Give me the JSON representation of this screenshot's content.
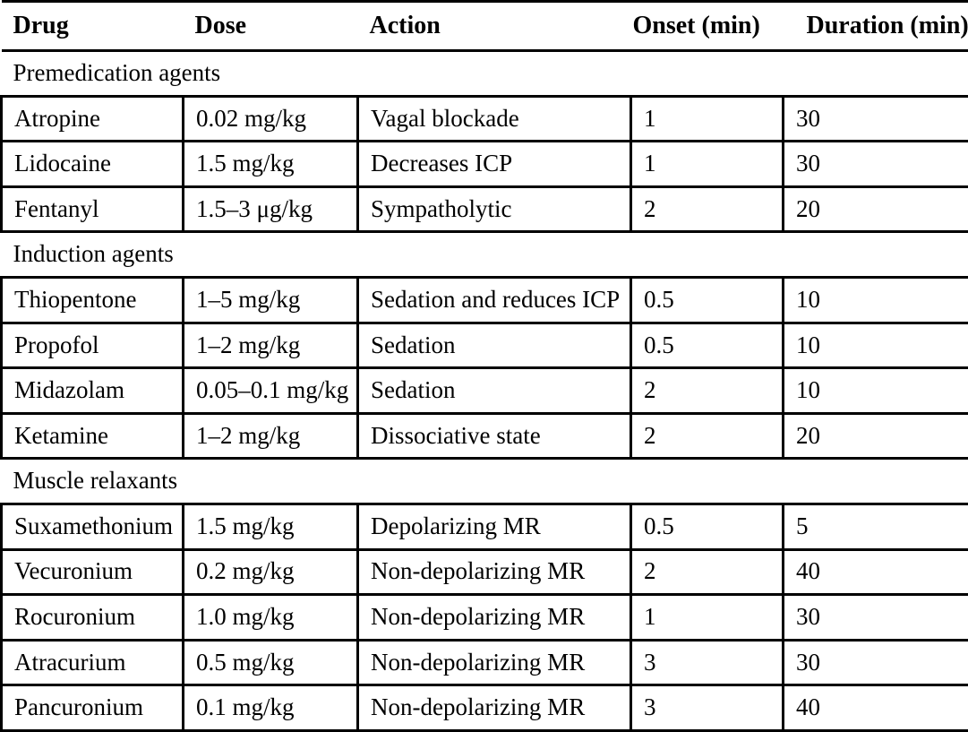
{
  "page": {
    "background_color": "#ffffff",
    "text_color": "#000000",
    "rule_color": "#000000"
  },
  "table": {
    "columns": [
      "Drug",
      "Dose",
      "Action",
      "Onset (min)",
      "Duration (min)"
    ],
    "sections": [
      {
        "title": "Premedication agents",
        "rows": [
          {
            "drug": "Atropine",
            "dose": "0.02 mg/kg",
            "action": "Vagal blockade",
            "onset": "1",
            "duration": "30"
          },
          {
            "drug": "Lidocaine",
            "dose": "1.5 mg/kg",
            "action": "Decreases ICP",
            "onset": "1",
            "duration": "30"
          },
          {
            "drug": "Fentanyl",
            "dose": "1.5–3 μg/kg",
            "action": "Sympatholytic",
            "onset": "2",
            "duration": "20"
          }
        ]
      },
      {
        "title": "Induction agents",
        "rows": [
          {
            "drug": "Thiopentone",
            "dose": "1–5 mg/kg",
            "action": "Sedation and reduces ICP",
            "onset": "0.5",
            "duration": "10"
          },
          {
            "drug": "Propofol",
            "dose": "1–2 mg/kg",
            "action": "Sedation",
            "onset": "0.5",
            "duration": "10"
          },
          {
            "drug": "Midazolam",
            "dose": "0.05–0.1 mg/kg",
            "action": "Sedation",
            "onset": "2",
            "duration": "10"
          },
          {
            "drug": "Ketamine",
            "dose": "1–2 mg/kg",
            "action": "Dissociative state",
            "onset": "2",
            "duration": "20"
          }
        ]
      },
      {
        "title": "Muscle relaxants",
        "rows": [
          {
            "drug": "Suxamethonium",
            "dose": "1.5 mg/kg",
            "action": "Depolarizing MR",
            "onset": "0.5",
            "duration": "5"
          },
          {
            "drug": "Vecuronium",
            "dose": "0.2 mg/kg",
            "action": "Non-depolarizing MR",
            "onset": "2",
            "duration": "40"
          },
          {
            "drug": "Rocuronium",
            "dose": "1.0 mg/kg",
            "action": "Non-depolarizing MR",
            "onset": "1",
            "duration": "30"
          },
          {
            "drug": "Atracurium",
            "dose": "0.5 mg/kg",
            "action": "Non-depolarizing MR",
            "onset": "3",
            "duration": "30"
          },
          {
            "drug": "Pancuronium",
            "dose": "0.1 mg/kg",
            "action": "Non-depolarizing MR",
            "onset": "3",
            "duration": "40"
          }
        ]
      }
    ]
  }
}
